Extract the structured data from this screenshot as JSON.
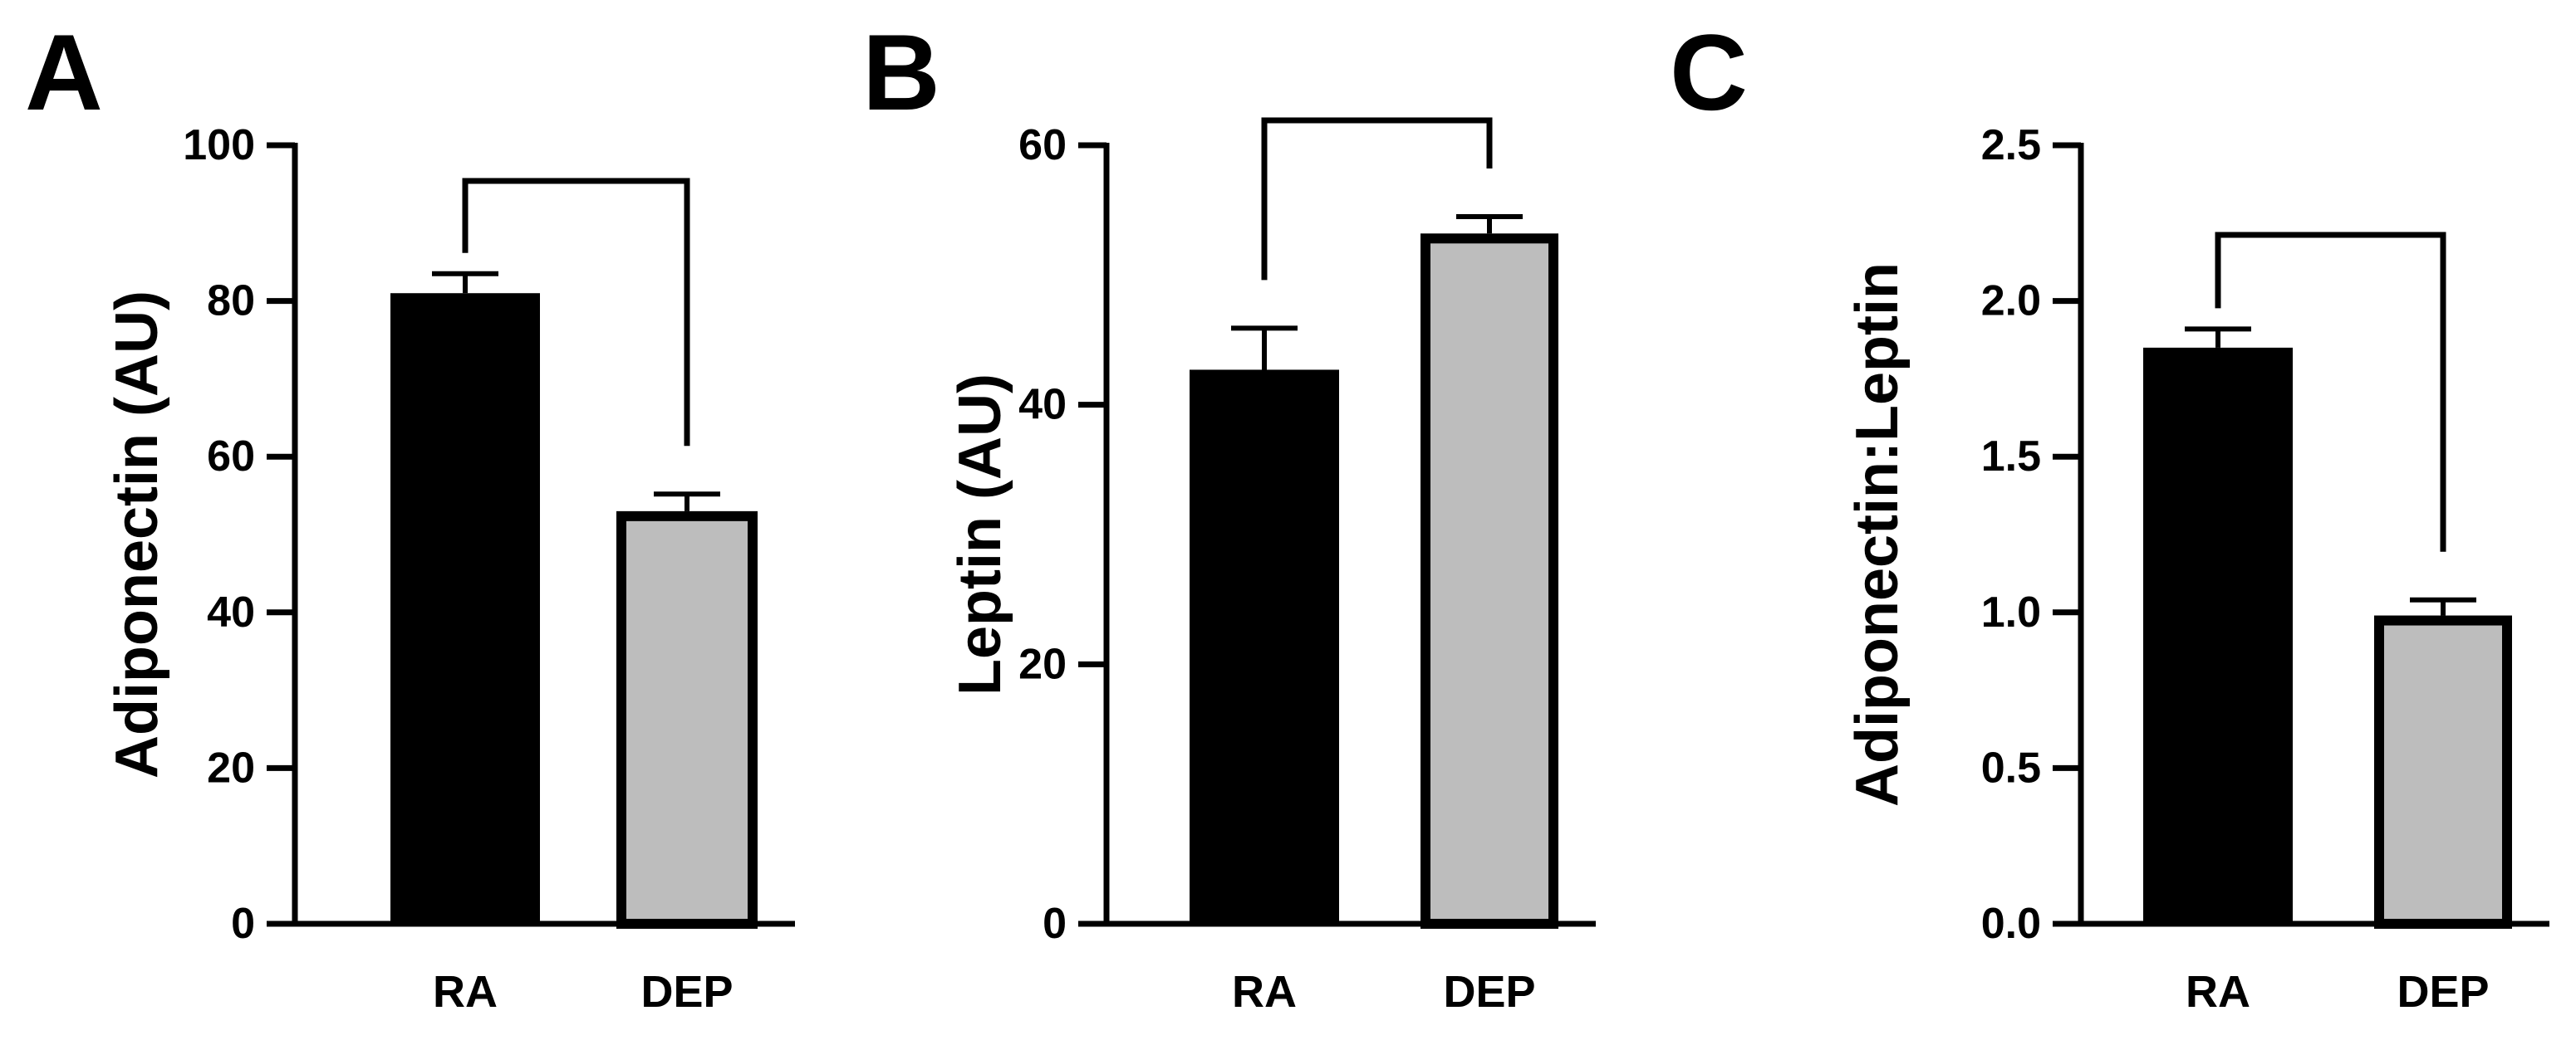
{
  "chart_data": [
    {
      "type": "bar",
      "panel": "A",
      "categories": [
        "RA",
        "DEP"
      ],
      "values": [
        81,
        53
      ],
      "error_upper": [
        83.5,
        55.2
      ],
      "ylabel": "Adiponectin (AU)",
      "ylim": [
        0,
        100
      ],
      "yticks": [
        0,
        20,
        40,
        60,
        80,
        100
      ],
      "ytick_labels": [
        "0",
        "20",
        "40",
        "60",
        "80",
        "100"
      ],
      "bar_colors": [
        "#000000",
        "#bdbdbd"
      ],
      "significance_bracket": true
    },
    {
      "type": "bar",
      "panel": "B",
      "categories": [
        "RA",
        "DEP"
      ],
      "values": [
        42.7,
        53.2
      ],
      "error_upper": [
        45.9,
        54.5
      ],
      "ylabel": "Leptin (AU)",
      "ylim": [
        0,
        60
      ],
      "yticks": [
        0,
        20,
        40,
        60
      ],
      "ytick_labels": [
        "0",
        "20",
        "40",
        "60"
      ],
      "bar_colors": [
        "#000000",
        "#bdbdbd"
      ],
      "significance_bracket": true
    },
    {
      "type": "bar",
      "panel": "C",
      "categories": [
        "RA",
        "DEP"
      ],
      "values": [
        1.85,
        0.99
      ],
      "error_upper": [
        1.91,
        1.04
      ],
      "ylabel": "Adiponectin:Leptin",
      "ylim": [
        0,
        2.5
      ],
      "yticks": [
        0,
        0.5,
        1.0,
        1.5,
        2.0,
        2.5
      ],
      "ytick_labels": [
        "0.0",
        "0.5",
        "1.0",
        "1.5",
        "2.0",
        "2.5"
      ],
      "bar_colors": [
        "#000000",
        "#bdbdbd"
      ],
      "significance_bracket": true
    }
  ]
}
